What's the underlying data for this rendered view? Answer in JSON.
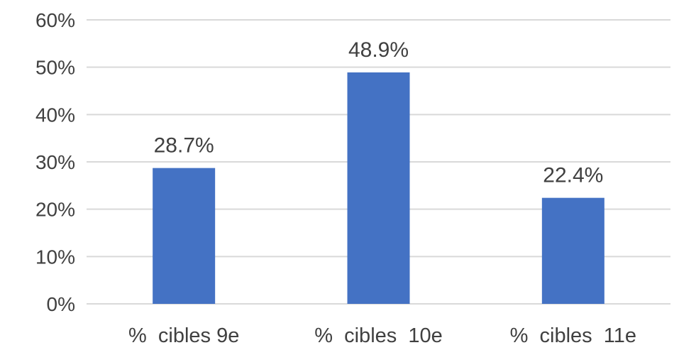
{
  "chart_data": {
    "type": "bar",
    "categories": [
      "%  cibles 9e",
      "%  cibles  10e",
      "%  cibles  11e"
    ],
    "values": [
      28.7,
      48.9,
      22.4
    ],
    "data_labels": [
      "28.7%",
      "48.9%",
      "22.4%"
    ],
    "ylim": [
      0,
      60
    ],
    "y_ticks": [
      0,
      10,
      20,
      30,
      40,
      50,
      60
    ],
    "y_tick_labels": [
      "0%",
      "10%",
      "20%",
      "30%",
      "40%",
      "50%",
      "60%"
    ],
    "grid": true,
    "legend": "none",
    "bar_color": "#4472c4"
  }
}
